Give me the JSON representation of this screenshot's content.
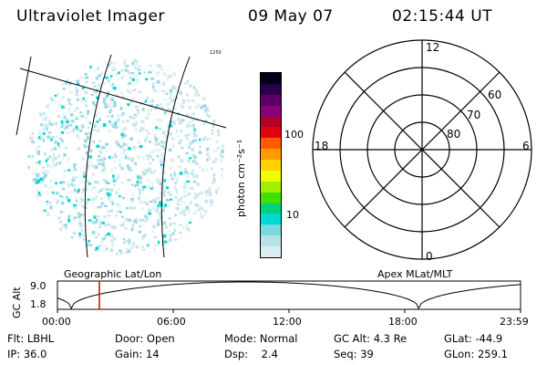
{
  "header": {
    "title": "Ultraviolet Imager",
    "date": "09 May 07",
    "time": "02:15:44 UT"
  },
  "image_panel": {
    "mark": "1250",
    "overlay_label": "Geographic Lat/Lon"
  },
  "colorbar": {
    "label": "photon cm⁻²s⁻¹",
    "ticks": [
      "100",
      "10"
    ],
    "colors": [
      "#00001a",
      "#28004a",
      "#5a0066",
      "#8a0078",
      "#b00028",
      "#e00010",
      "#ff5a00",
      "#ff9a00",
      "#ffd200",
      "#f0ff00",
      "#9ef000",
      "#40e000",
      "#00d27a",
      "#00d8d2",
      "#7ad8e0",
      "#b8e2e8",
      "#d8eef0"
    ]
  },
  "polar_plot": {
    "mlt_labels": {
      "top": "12",
      "bottom": "0",
      "left": "18",
      "right": "6"
    },
    "lat_labels": [
      "60",
      "70",
      "80"
    ],
    "overlay_label": "Apex MLat/MLT"
  },
  "altitude_plot": {
    "ylabel": "GC Alt",
    "yticks": [
      "9.0",
      "1.8"
    ],
    "xticks": [
      "00:00",
      "06:00",
      "12:00",
      "18:00",
      "23:59"
    ],
    "marker_time": "02:15:44"
  },
  "status": {
    "row1": [
      {
        "label": "Flt:",
        "value": "LBHL"
      },
      {
        "label": "Door:",
        "value": "Open"
      },
      {
        "label": "Mode:",
        "value": "Normal"
      },
      {
        "label": "GC Alt:",
        "value": "4.3 Re"
      },
      {
        "label": "GLat:",
        "value": "-44.9"
      }
    ],
    "row2": [
      {
        "label": "IP:",
        "value": "36.0"
      },
      {
        "label": "Gain:",
        "value": "14"
      },
      {
        "label": "Dsp:",
        "value": "2.4"
      },
      {
        "label": "Seq:",
        "value": "39"
      },
      {
        "label": "GLon:",
        "value": "259.1"
      }
    ]
  }
}
